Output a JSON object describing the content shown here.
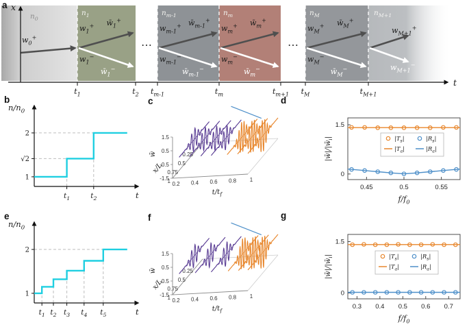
{
  "figure": {
    "panels": {
      "a": "a",
      "b": "b",
      "c": "c",
      "d": "d",
      "e": "e",
      "f": "f",
      "g": "g"
    }
  },
  "diagram_a": {
    "x_axis_label": "x",
    "t_axis_label": "t",
    "segments": [
      {
        "kind": "incident",
        "name": "n_{0}",
        "color": "#d9d9d9",
        "top_labels": [
          "w_{0}^{+}"
        ],
        "bottom_labels": []
      },
      {
        "kind": "band",
        "name": "n_{1}",
        "color": "#99a186",
        "top_labels": [
          "w_{1}^{+}",
          "w̄_{1}^{+}"
        ],
        "bottom_labels": [
          "w_{1}^{−}",
          "w̄_{1}^{−}"
        ]
      },
      {
        "kind": "gap",
        "dots": "⋯"
      },
      {
        "kind": "band",
        "name": "n_{m-1}",
        "color": "#8e9296",
        "top_labels": [
          "w_{m-1}^{+}",
          "w̄_{m-1}^{+}"
        ],
        "bottom_labels": [
          "w_{m-1}^{−}",
          "w̄_{m-1}^{−}"
        ]
      },
      {
        "kind": "band",
        "name": "n_{m}",
        "color": "#b28077",
        "top_labels": [
          "w_{m}^{+}",
          "w̄_{m}^{+}"
        ],
        "bottom_labels": [
          "w_{m}^{−}",
          "w̄_{m}^{−}"
        ]
      },
      {
        "kind": "gap",
        "dots": "⋯"
      },
      {
        "kind": "band",
        "name": "n_{M}",
        "color": "#94979b",
        "top_labels": [
          "w_{M}^{+}",
          "w̄_{M}^{+}"
        ],
        "bottom_labels": [
          "w_{M}^{−}",
          "w̄_{M}^{−}"
        ]
      },
      {
        "kind": "transmitted",
        "name": "n_{M+1}",
        "color": "#b6b9bc",
        "top_labels": [
          "w_{M+1}^{+}"
        ],
        "bottom_labels": [
          "w_{M+1}^{−}"
        ]
      }
    ],
    "ticks": [
      "t_{1}",
      "t_{2}",
      "t_{m-1}",
      "t_{m}",
      "t_{m+1}",
      "t_{M}",
      "t_{M+1}"
    ]
  },
  "chart_data": [
    {
      "id": "b",
      "type": "step",
      "color": "#1fcfe1",
      "ylabel": "n/n_{0}",
      "xlabel": "t",
      "y_ticks": [
        {
          "label": "1",
          "value": 1,
          "dashed": false
        },
        {
          "label": "√2",
          "value": 1.4142,
          "dashed": true
        },
        {
          "label": "2",
          "value": 2,
          "dashed": true
        }
      ],
      "x_ticks": [
        {
          "label": "t_{1}",
          "pos": 0.34
        },
        {
          "label": "t_{2}",
          "pos": 0.62
        }
      ],
      "steps": [
        {
          "x1": 0,
          "x2": 0.34,
          "y": 1
        },
        {
          "x1": 0.34,
          "x2": 0.62,
          "y": 1.4142
        },
        {
          "x1": 0.62,
          "x2": 0.97,
          "y": 2
        }
      ]
    },
    {
      "id": "c",
      "type": "wave3d",
      "zlabel": "w̄",
      "xlabel": "x/L",
      "tlabel": "t/t_{f}",
      "z_ticks": [
        1.5,
        0.5,
        -0.5,
        -1.5
      ],
      "x_ticks": [
        0.25,
        0.5,
        0.75,
        1
      ],
      "t_ticks": [
        0.2,
        0.4,
        0.6,
        0.8,
        1
      ],
      "t_range": [
        0.2,
        1
      ],
      "x_range": [
        0,
        1
      ],
      "z_range": [
        -1.5,
        1.5
      ],
      "packets": [
        {
          "t": 0.27,
          "color": "#5a3d94",
          "amp": 0.8,
          "cycles": 9
        },
        {
          "t": 0.38,
          "color": "#5a3d94",
          "amp": 0.8,
          "cycles": 9
        },
        {
          "t": 0.5,
          "color": "#5a3d94",
          "amp": 0.85,
          "cycles": 9
        },
        {
          "t": 0.61,
          "color": "#5a3d94",
          "amp": 0.85,
          "cycles": 9
        },
        {
          "t": 0.78,
          "color": "#e8872d",
          "amp": 1.15,
          "cycles": 12
        },
        {
          "t": 0.89,
          "color": "#e8872d",
          "amp": 1.2,
          "cycles": 12
        },
        {
          "t": 1.0,
          "color": "#e8872d",
          "amp": 1.2,
          "cycles": 12
        }
      ],
      "trajectory": {
        "color": "#4d8fc9"
      }
    },
    {
      "id": "d",
      "type": "response",
      "xlabel": "f/f_{0}",
      "ylabel": "|w̄|/|w̄_{i}|",
      "xlim": [
        0.425,
        0.575
      ],
      "ylim": [
        -0.17,
        1.71
      ],
      "x_ticks": [
        {
          "label": "0.45",
          "value": 0.45
        },
        {
          "label": "0.5",
          "value": 0.5
        },
        {
          "label": "0.55",
          "value": 0.55
        }
      ],
      "y_ticks": [
        {
          "label": "0",
          "value": 0
        },
        {
          "label": "1.5",
          "value": 1.5
        }
      ],
      "scatter_x": [
        0.43,
        0.4475,
        0.465,
        0.4825,
        0.5,
        0.5175,
        0.535,
        0.5525,
        0.57
      ],
      "series": [
        {
          "label": "|T_{a}|",
          "type": "line",
          "color": "#e8872d",
          "x": [
            0.425,
            0.45,
            0.475,
            0.5,
            0.525,
            0.55,
            0.575
          ],
          "y": [
            1.414,
            1.414,
            1.414,
            1.414,
            1.414,
            1.414,
            1.414
          ]
        },
        {
          "label": "|R_{a}|",
          "type": "line",
          "color": "#4d8fc9",
          "x": [
            0.425,
            0.44,
            0.455,
            0.47,
            0.485,
            0.5,
            0.515,
            0.53,
            0.545,
            0.56,
            0.575
          ],
          "y": [
            0.15,
            0.12,
            0.09,
            0.06,
            0.03,
            0.005,
            0.03,
            0.06,
            0.09,
            0.12,
            0.15
          ]
        },
        {
          "label": "|T_{s}|",
          "type": "scatter",
          "color": "#e8872d",
          "y": [
            1.42,
            1.42,
            1.41,
            1.41,
            1.41,
            1.41,
            1.41,
            1.42,
            1.42
          ]
        },
        {
          "label": "|R_{s}|",
          "type": "scatter",
          "color": "#4d8fc9",
          "y": [
            0.14,
            0.105,
            0.07,
            0.035,
            0.005,
            0.035,
            0.07,
            0.105,
            0.14
          ]
        }
      ],
      "legend": {
        "rows": [
          [
            {
              "marker": "circle",
              "color": "#e8872d",
              "label": "|T_{s}|"
            },
            {
              "marker": "circle",
              "color": "#4d8fc9",
              "label": "|R_{s}|"
            }
          ],
          [
            {
              "marker": "line",
              "color": "#e8872d",
              "label": "|T_{a}|"
            },
            {
              "marker": "line",
              "color": "#4d8fc9",
              "label": "|R_{a}|"
            }
          ]
        ]
      }
    },
    {
      "id": "e",
      "type": "step",
      "color": "#1fcfe1",
      "ylabel": "n/n_{0}",
      "xlabel": "t",
      "y_ticks": [
        {
          "label": "1",
          "value": 1,
          "dashed": false
        },
        {
          "label": "2",
          "value": 2,
          "dashed": true
        }
      ],
      "x_ticks": [
        {
          "label": "t_{1}",
          "pos": 0.08
        },
        {
          "label": "t_{2}",
          "pos": 0.2
        },
        {
          "label": "t_{3}",
          "pos": 0.34
        },
        {
          "label": "t_{4}",
          "pos": 0.52
        },
        {
          "label": "t_{5}",
          "pos": 0.72
        }
      ],
      "steps": [
        {
          "x1": 0,
          "x2": 0.08,
          "y": 1
        },
        {
          "x1": 0.08,
          "x2": 0.2,
          "y": 1.1487
        },
        {
          "x1": 0.2,
          "x2": 0.34,
          "y": 1.3195
        },
        {
          "x1": 0.34,
          "x2": 0.52,
          "y": 1.5157
        },
        {
          "x1": 0.52,
          "x2": 0.72,
          "y": 1.7411
        },
        {
          "x1": 0.72,
          "x2": 0.97,
          "y": 2
        }
      ]
    },
    {
      "id": "f",
      "type": "wave3d",
      "zlabel": "w̄",
      "xlabel": "x/L",
      "tlabel": "t/t_{f}",
      "z_ticks": [
        1.5,
        0.5,
        -0.5,
        -1.5
      ],
      "x_ticks": [
        0.25,
        0.5,
        0.75,
        1
      ],
      "t_ticks": [
        0.2,
        0.4,
        0.6,
        0.8,
        1
      ],
      "t_range": [
        0.2,
        1
      ],
      "x_range": [
        0,
        1
      ],
      "z_range": [
        -1.5,
        1.5
      ],
      "packets": [
        {
          "t": 0.27,
          "color": "#5a3d94",
          "amp": 0.8,
          "cycles": 9
        },
        {
          "t": 0.44,
          "color": "#5a3d94",
          "amp": 0.85,
          "cycles": 9
        },
        {
          "t": 0.61,
          "color": "#5a3d94",
          "amp": 0.85,
          "cycles": 9
        },
        {
          "t": 0.79,
          "color": "#e8872d",
          "amp": 1.15,
          "cycles": 12
        },
        {
          "t": 0.9,
          "color": "#e8872d",
          "amp": 1.2,
          "cycles": 12
        },
        {
          "t": 1.0,
          "color": "#e8872d",
          "amp": 1.2,
          "cycles": 12
        }
      ],
      "trajectory": {
        "color": "#4d8fc9"
      }
    },
    {
      "id": "g",
      "type": "response",
      "xlabel": "f/f_{0}",
      "ylabel": "|w̄|/|w̄_{i}|",
      "xlim": [
        0.26,
        0.75
      ],
      "ylim": [
        -0.17,
        1.71
      ],
      "x_ticks": [
        {
          "label": "0.3",
          "value": 0.3
        },
        {
          "label": "0.4",
          "value": 0.4
        },
        {
          "label": "0.5",
          "value": 0.5
        },
        {
          "label": "0.6",
          "value": 0.6
        },
        {
          "label": "0.7",
          "value": 0.7
        }
      ],
      "y_ticks": [
        {
          "label": "0",
          "value": 0
        },
        {
          "label": "1.5",
          "value": 1.5
        }
      ],
      "scatter_x": [
        0.28,
        0.33,
        0.38,
        0.43,
        0.48,
        0.53,
        0.58,
        0.63,
        0.68,
        0.73
      ],
      "series": [
        {
          "label": "|T_{a}|",
          "type": "line",
          "color": "#e8872d",
          "x": [
            0.26,
            0.38,
            0.5,
            0.62,
            0.75
          ],
          "y": [
            1.414,
            1.414,
            1.414,
            1.414,
            1.414
          ]
        },
        {
          "label": "|R_{a}|",
          "type": "line",
          "color": "#4d8fc9",
          "x": [
            0.26,
            0.38,
            0.5,
            0.62,
            0.75
          ],
          "y": [
            0.02,
            0.02,
            0.02,
            0.02,
            0.02
          ]
        },
        {
          "label": "|T_{s}|",
          "type": "scatter",
          "color": "#e8872d",
          "y": [
            1.41,
            1.42,
            1.41,
            1.41,
            1.42,
            1.41,
            1.41,
            1.42,
            1.41,
            1.41
          ]
        },
        {
          "label": "|R_{s}|",
          "type": "scatter",
          "color": "#4d8fc9",
          "y": [
            0.02,
            0.02,
            0.02,
            0.02,
            0.02,
            0.02,
            0.02,
            0.02,
            0.02,
            0.02
          ]
        }
      ],
      "legend": {
        "rows": [
          [
            {
              "marker": "circle",
              "color": "#e8872d",
              "label": "|T_{s}|"
            },
            {
              "marker": "circle",
              "color": "#4d8fc9",
              "label": "|R_{s}|"
            }
          ],
          [
            {
              "marker": "line",
              "color": "#e8872d",
              "label": "|T_{a}|"
            },
            {
              "marker": "line",
              "color": "#4d8fc9",
              "label": "|R_{a}|"
            }
          ]
        ]
      }
    }
  ]
}
